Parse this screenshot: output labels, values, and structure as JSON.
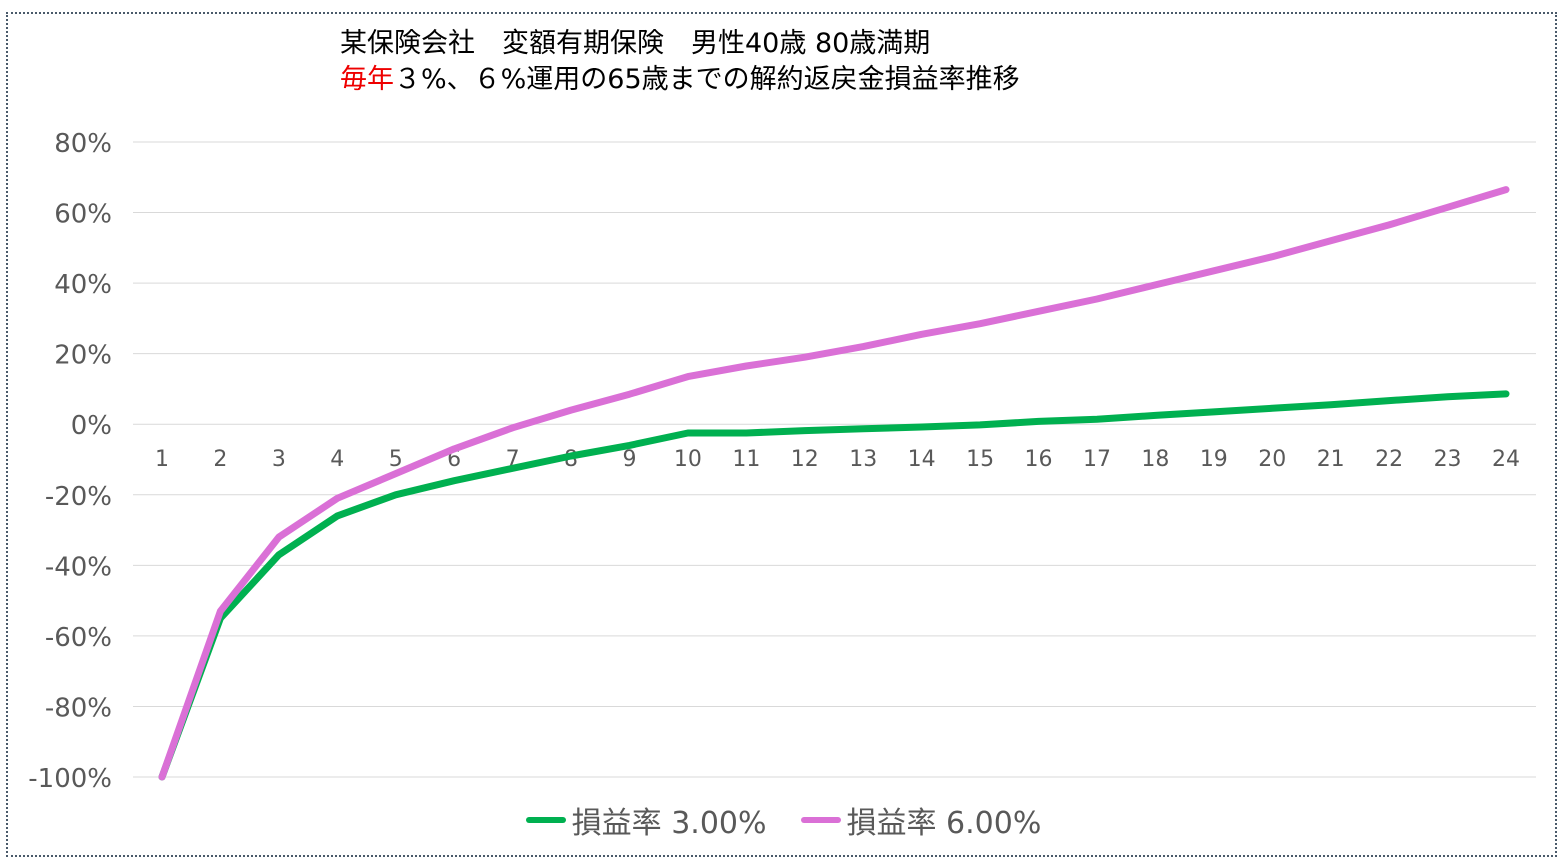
{
  "title": {
    "line1": "某保険会社　変額有期保険　男性40歳 80歳満期",
    "line2_red": "毎年",
    "line2_rest": "３%、６%運用の65歳までの解約返戻金損益率推移"
  },
  "chart_data": {
    "type": "line",
    "title": "某保険会社　変額有期保険　男性40歳 80歳満期 毎年３%、６%運用の65歳までの解約返戻金損益率推移",
    "x": [
      1,
      2,
      3,
      4,
      5,
      6,
      7,
      8,
      9,
      10,
      11,
      12,
      13,
      14,
      15,
      16,
      17,
      18,
      19,
      20,
      21,
      22,
      23,
      24
    ],
    "x_tick_labels": [
      "1",
      "2",
      "3",
      "4",
      "5",
      "6",
      "7",
      "8",
      "9",
      "10",
      "11",
      "12",
      "13",
      "14",
      "15",
      "16",
      "17",
      "18",
      "19",
      "20",
      "21",
      "22",
      "23",
      "24"
    ],
    "ylim": [
      -100,
      80
    ],
    "y_tick_labels": [
      "80%",
      "60%",
      "40%",
      "20%",
      "0%",
      "-20%",
      "-40%",
      "-60%",
      "-80%",
      "-100%"
    ],
    "y_ticks": [
      80,
      60,
      40,
      20,
      0,
      -20,
      -40,
      -60,
      -80,
      -100
    ],
    "grid": true,
    "legend_position": "bottom",
    "series": [
      {
        "name": "損益率 3.00%",
        "color": "#00b050",
        "values": [
          -100,
          -55,
          -37,
          -26,
          -20,
          -16,
          -12.5,
          -9,
          -6,
          -2.5,
          -2.5,
          -1.8,
          -1.3,
          -0.8,
          -0.2,
          0.8,
          1.4,
          2.5,
          3.5,
          4.5,
          5.5,
          6.7,
          7.8,
          8.6
        ]
      },
      {
        "name": "損益率 6.00%",
        "color": "#da70d6",
        "values": [
          -100,
          -53,
          -32,
          -21,
          -14,
          -7,
          -1,
          4,
          8.5,
          13.5,
          16.5,
          19,
          22,
          25.5,
          28.5,
          32,
          35.5,
          39.5,
          43.5,
          47.5,
          52,
          56.5,
          61.5,
          66.5
        ]
      }
    ]
  }
}
